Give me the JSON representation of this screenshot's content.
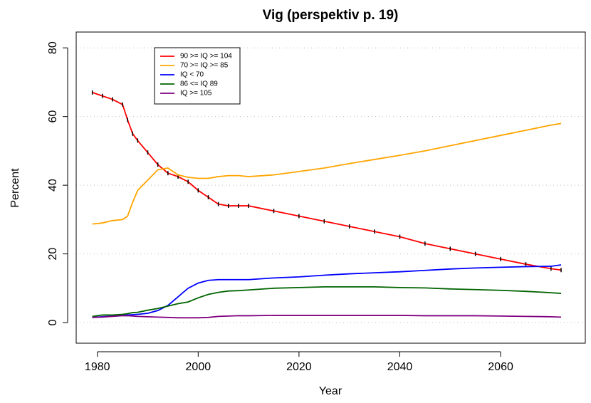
{
  "chart_data": {
    "type": "line",
    "title": "Vig (perspektiv p. 19)",
    "x_label": "Year",
    "y_label": "Percent",
    "x": [
      1979,
      1981,
      1983,
      1985,
      1986,
      1987,
      1988,
      1990,
      1992,
      1994,
      1996,
      1998,
      2000,
      2002,
      2004,
      2006,
      2008,
      2010,
      2015,
      2020,
      2025,
      2030,
      2035,
      2040,
      2045,
      2050,
      2055,
      2060,
      2065,
      2070,
      2072
    ],
    "series": [
      {
        "name": "90 >= IQ >= 104",
        "color": "#ff0000",
        "markers": true,
        "values": [
          67,
          66,
          65,
          63.5,
          59,
          55,
          53,
          49.5,
          46,
          43.5,
          42.5,
          41,
          38.5,
          36.5,
          34.5,
          34,
          34,
          34,
          32.5,
          31,
          29.5,
          28,
          26.5,
          25,
          23,
          21.5,
          20,
          18.5,
          17,
          15.7,
          15.3
        ]
      },
      {
        "name": "70 >= IQ >= 85",
        "color": "#ffa500",
        "values": [
          28.7,
          29,
          29.7,
          30,
          31,
          35,
          38.5,
          41.5,
          44.5,
          45,
          43,
          42.3,
          42,
          42,
          42.5,
          42.8,
          42.8,
          42.5,
          43,
          44,
          45,
          46.3,
          47.5,
          48.7,
          50,
          51.5,
          53,
          54.5,
          56,
          57.5,
          58
        ]
      },
      {
        "name": "IQ < 70",
        "color": "#0000ff",
        "values": [
          1.5,
          1.7,
          1.9,
          2.1,
          2.2,
          2.3,
          2.4,
          2.7,
          3.5,
          5,
          7.5,
          10,
          11.5,
          12.3,
          12.5,
          12.5,
          12.5,
          12.5,
          13,
          13.3,
          13.8,
          14.2,
          14.5,
          14.8,
          15.2,
          15.6,
          15.9,
          16.1,
          16.3,
          16.4,
          16.8
        ]
      },
      {
        "name": "86 <= IQ 89",
        "color": "#006400",
        "values": [
          1.8,
          2.2,
          2.2,
          2.4,
          2.6,
          2.9,
          3,
          3.6,
          4.1,
          4.8,
          5.5,
          6,
          7.2,
          8.2,
          8.8,
          9.2,
          9.3,
          9.5,
          10,
          10.2,
          10.4,
          10.4,
          10.4,
          10.2,
          10.1,
          9.8,
          9.6,
          9.4,
          9.1,
          8.7,
          8.5
        ]
      },
      {
        "name": "IQ >= 105",
        "color": "#800080",
        "values": [
          1.5,
          1.6,
          1.8,
          2,
          2,
          1.9,
          1.8,
          1.7,
          1.6,
          1.5,
          1.4,
          1.4,
          1.4,
          1.5,
          1.8,
          1.9,
          2,
          2,
          2.1,
          2.1,
          2.1,
          2.1,
          2.1,
          2.1,
          2,
          2,
          2,
          1.9,
          1.8,
          1.7,
          1.6
        ]
      }
    ],
    "xlim": [
      1975.8,
      2076.8
    ],
    "ylim": [
      -6,
      84.6
    ],
    "xticks": [
      1980,
      2000,
      2020,
      2040,
      2060
    ],
    "yticks": [
      0,
      20,
      40,
      60,
      80
    ],
    "grid": true,
    "legend_position": "top-left"
  }
}
